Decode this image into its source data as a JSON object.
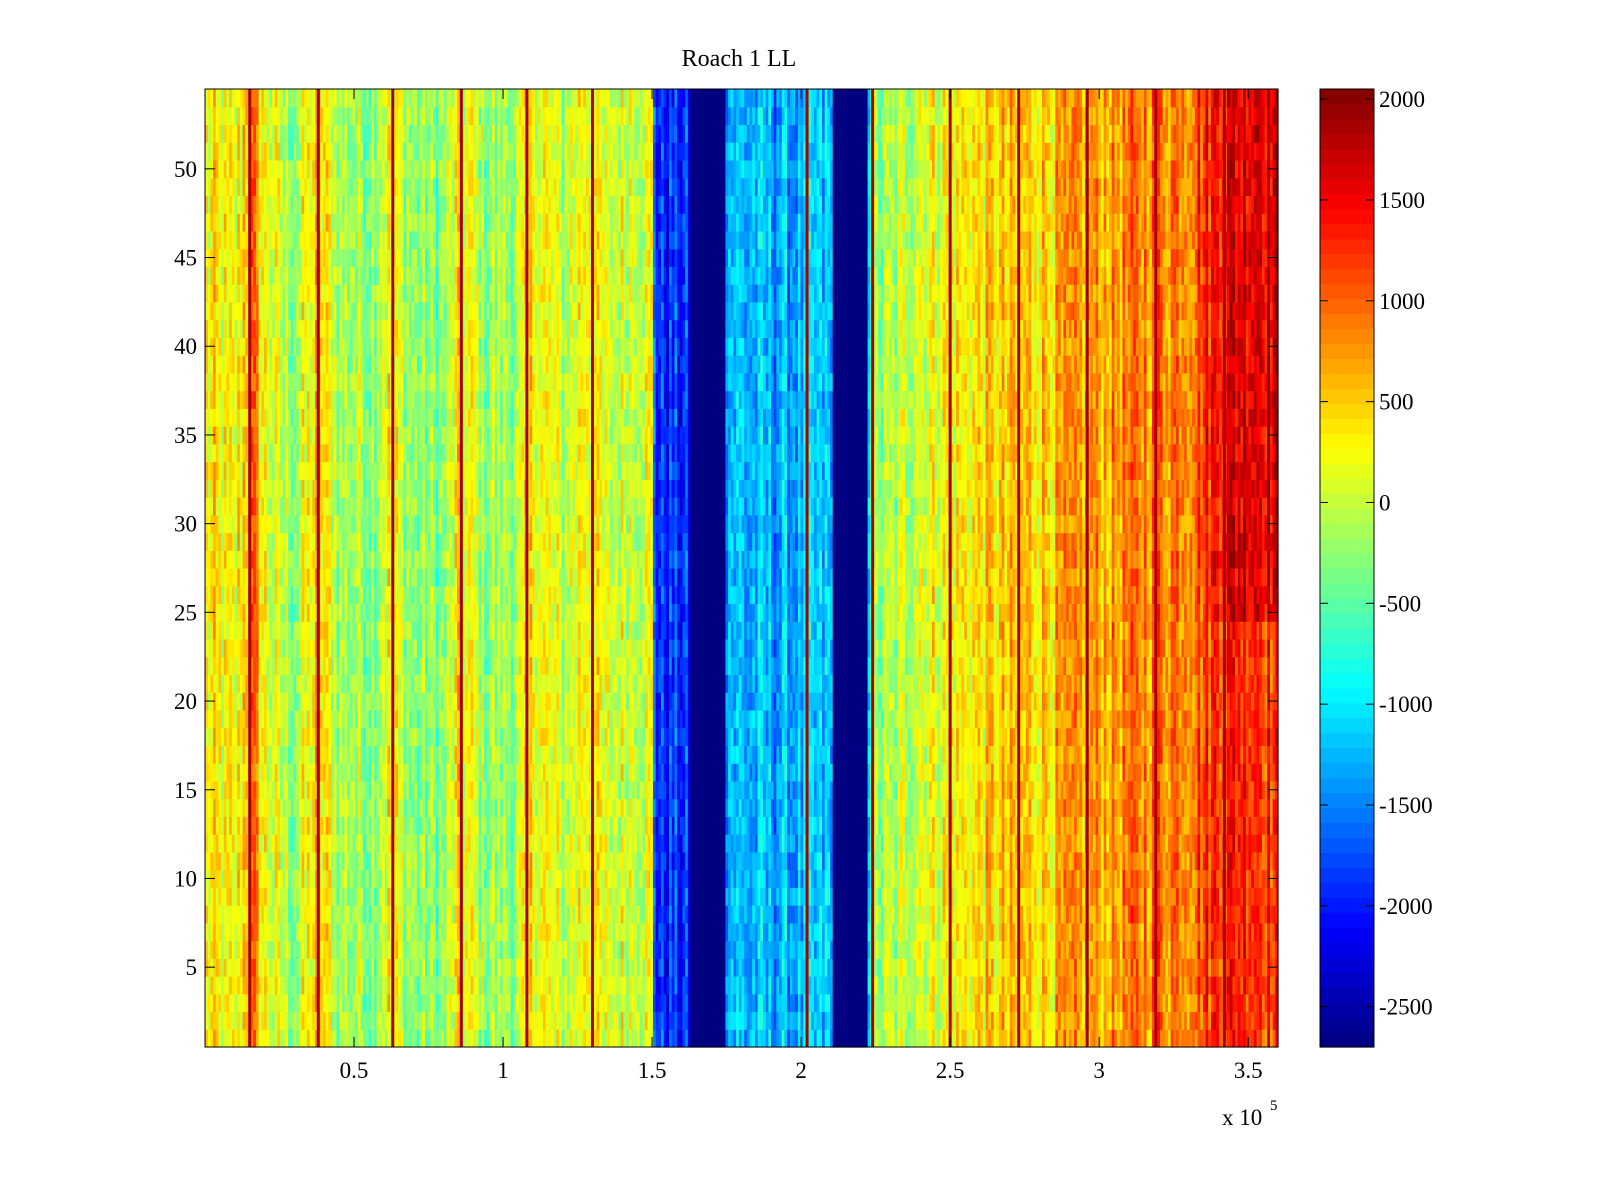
{
  "chart_data": {
    "type": "heatmap",
    "title": "Roach 1 LL",
    "xlabel": "",
    "ylabel": "",
    "x_multiplier_label": "x 10",
    "x_multiplier_exponent": "5",
    "xlim": [
      0,
      3.6
    ],
    "ylim": [
      0.5,
      54.5
    ],
    "x_ticks": [
      0.5,
      1,
      1.5,
      2,
      2.5,
      3,
      3.5
    ],
    "x_tick_labels": [
      "0.5",
      "1",
      "1.5",
      "2",
      "2.5",
      "3",
      "3.5"
    ],
    "y_ticks": [
      5,
      10,
      15,
      20,
      25,
      30,
      35,
      40,
      45,
      50
    ],
    "y_tick_labels": [
      "5",
      "10",
      "15",
      "20",
      "25",
      "30",
      "35",
      "40",
      "45",
      "50"
    ],
    "colorbar": {
      "colormap": "jet",
      "clim": [
        -2700,
        2050
      ],
      "ticks": [
        2000,
        1500,
        1000,
        500,
        0,
        -500,
        -1000,
        -1500,
        -2000,
        -2500
      ],
      "tick_labels": [
        "2000",
        "1500",
        "1000",
        "500",
        "0",
        "-500",
        "-1000",
        "-1500",
        "-2000",
        "-2500"
      ]
    },
    "rows": 54,
    "data_description": {
      "x_range": [
        0,
        3.6
      ],
      "column_profile_x": [
        0.0,
        0.1,
        0.14,
        0.16,
        0.2,
        0.3,
        0.38,
        0.45,
        0.55,
        0.62,
        0.7,
        0.8,
        0.85,
        0.95,
        1.05,
        1.1,
        1.2,
        1.28,
        1.35,
        1.45,
        1.5,
        1.51,
        1.62,
        1.63,
        1.74,
        1.75,
        1.85,
        2.0,
        2.1,
        2.11,
        2.22,
        2.23,
        2.3,
        2.4,
        2.5,
        2.6,
        2.7,
        2.8,
        2.9,
        3.0,
        3.1,
        3.2,
        3.3,
        3.4,
        3.5,
        3.6
      ],
      "column_profile_value": [
        300,
        100,
        700,
        900,
        200,
        -200,
        500,
        -100,
        -200,
        300,
        -300,
        -300,
        300,
        -200,
        -100,
        400,
        -100,
        400,
        0,
        200,
        100,
        -1900,
        -1900,
        -2700,
        -2700,
        -1200,
        -1300,
        -1300,
        -1200,
        -2700,
        -2700,
        -300,
        -200,
        200,
        250,
        400,
        450,
        500,
        600,
        700,
        800,
        900,
        1000,
        1300,
        1400,
        1200
      ],
      "dark_red_stripes_x": [
        0.15,
        0.38,
        0.63,
        0.86,
        1.08,
        1.3,
        2.02,
        2.24,
        2.5,
        2.73,
        2.96,
        3.19,
        3.42
      ],
      "dark_blue_bands_x": [
        [
          1.62,
          1.74
        ],
        [
          2.11,
          2.22
        ]
      ],
      "upper_right_warm_region": {
        "x": [
          3.3,
          3.6
        ],
        "y": [
          25,
          54
        ],
        "value": 1600
      }
    }
  }
}
